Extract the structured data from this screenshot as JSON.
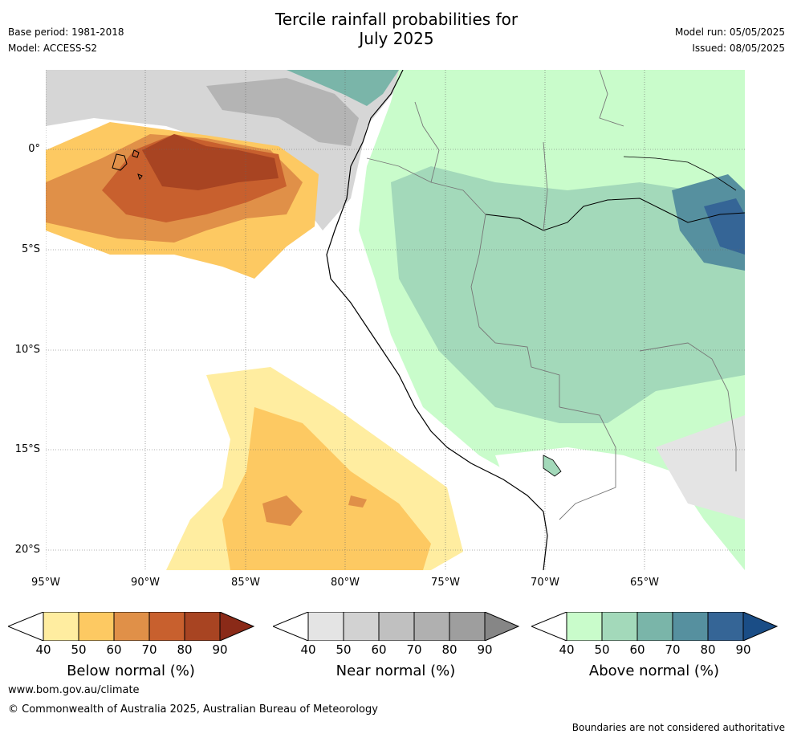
{
  "title_line1": "Tercile rainfall probabilities for",
  "title_line2": "July 2025",
  "base_period": "Base period: 1981-2018",
  "model": "Model: ACCESS-S2",
  "model_run": "Model run: 05/05/2025",
  "issued": "Issued: 08/05/2025",
  "lat_ticks": [
    "0°",
    "5°S",
    "10°S",
    "15°S",
    "20°S"
  ],
  "lon_ticks": [
    "95°W",
    "90°W",
    "85°W",
    "80°W",
    "75°W",
    "70°W",
    "65°W"
  ],
  "colorbars": [
    {
      "label": "Below normal (%)",
      "ticks": [
        "40",
        "50",
        "60",
        "70",
        "80",
        "90"
      ],
      "colors": [
        "#ffeda0",
        "#fdc962",
        "#e09048",
        "#c8602e",
        "#a84422",
        "#8a2a18"
      ]
    },
    {
      "label": "Near normal (%)",
      "ticks": [
        "40",
        "50",
        "60",
        "70",
        "80",
        "90"
      ],
      "colors": [
        "#e4e4e4",
        "#d2d2d2",
        "#c0c0c0",
        "#b0b0b0",
        "#9e9e9e",
        "#868686"
      ]
    },
    {
      "label": "Above normal (%)",
      "ticks": [
        "40",
        "50",
        "60",
        "70",
        "80",
        "90"
      ],
      "colors": [
        "#c9fccb",
        "#a3d9ba",
        "#7ab5a9",
        "#56909f",
        "#356596",
        "#1a4d86"
      ]
    }
  ],
  "website": "www.bom.gov.au/climate",
  "copyright": "© Commonwealth of Australia 2025, Australian Bureau of Meteorology",
  "disclaimer": "Boundaries are not considered authoritative"
}
